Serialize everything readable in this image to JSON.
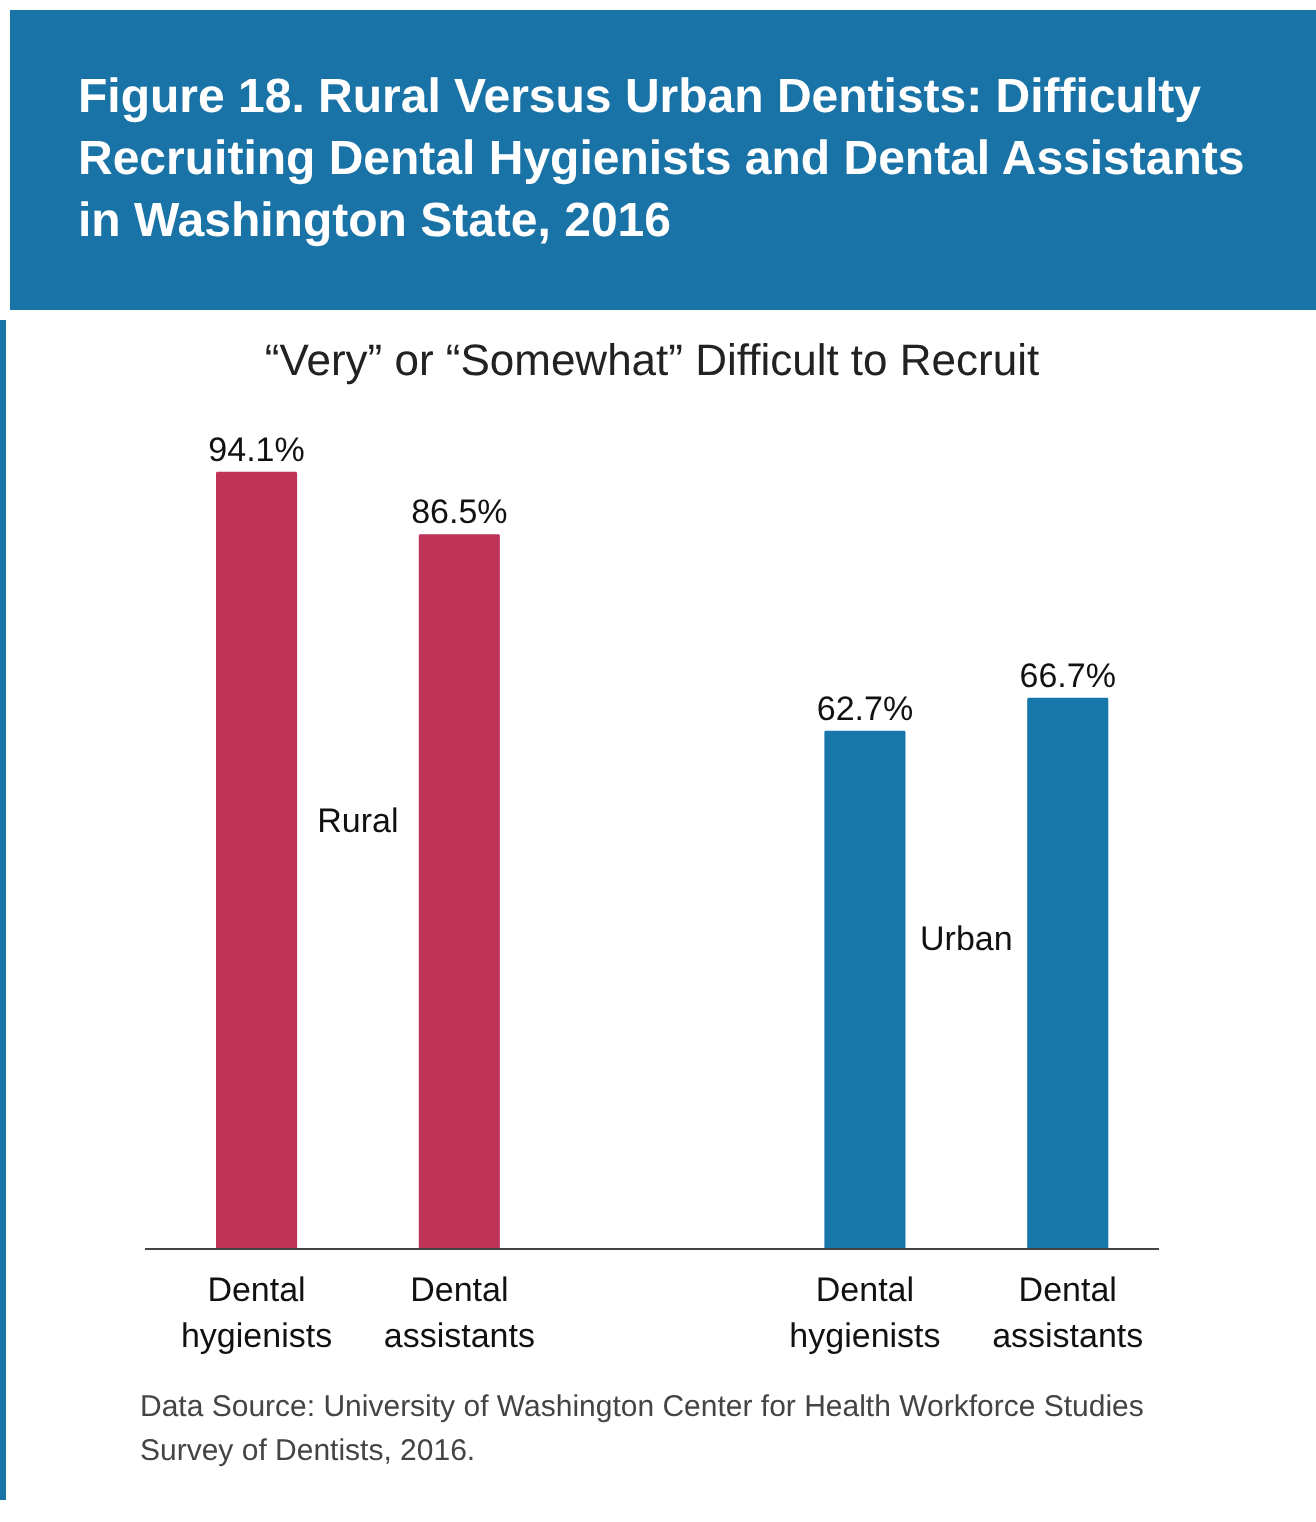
{
  "chart_data": {
    "type": "bar",
    "title": "Figure 18. Rural Versus Urban Dentists: Difficulty Recruiting Dental Hygienists and Dental Assistants in Washington State, 2016",
    "subtitle": "“Very” or “Somewhat” Difficult to Recruit",
    "categories": [
      "Dental\nhygienists",
      "Dental\nassistants",
      "Dental\nhygienists",
      "Dental\nassistants"
    ],
    "series": [
      {
        "name": "Rural",
        "color": "#bf3358",
        "values": [
          94.1,
          86.5,
          null,
          null
        ],
        "value_labels": [
          "94.1%",
          "86.5%",
          null,
          null
        ]
      },
      {
        "name": "Urban",
        "color": "#1877aa",
        "values": [
          null,
          null,
          62.7,
          66.7
        ],
        "value_labels": [
          null,
          null,
          "62.7%",
          "66.7%"
        ]
      }
    ],
    "annotations": [
      "Data Source: University of Washington Center for Health Workforce Studies Survey of Dentists, 2016."
    ],
    "grid": false
  }
}
